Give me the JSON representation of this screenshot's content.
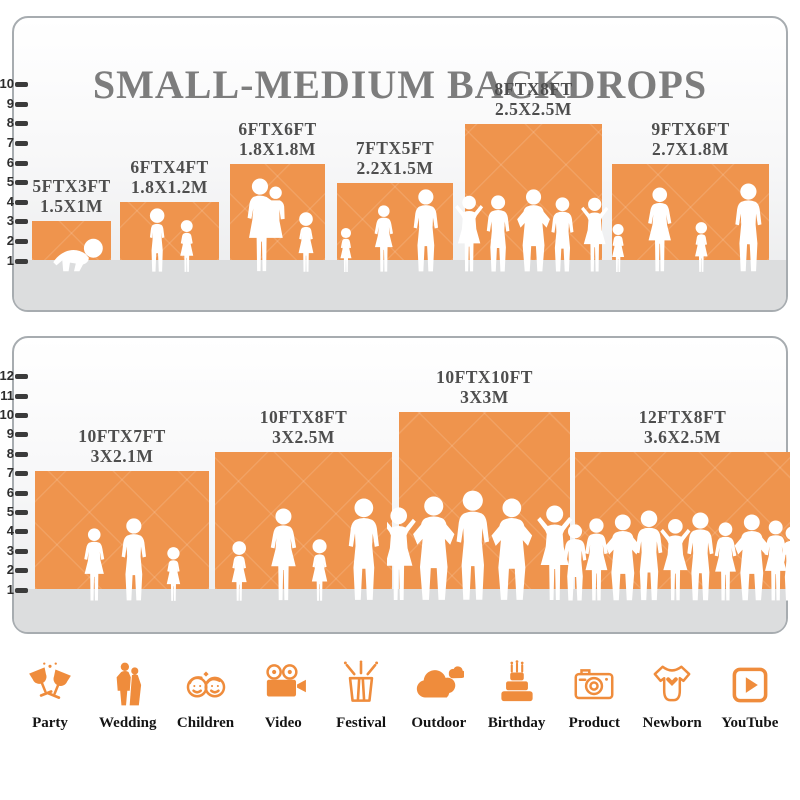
{
  "title": "SMALL-MEDIUM BACKDROPS",
  "colors": {
    "backdrop_orange": "#EF944D",
    "icon_accent": "#EF8C3C",
    "title_gray": "#7D7D7D",
    "label_gray": "#4E4E4E",
    "tick_dark": "#3B3B3B",
    "floor_gray": "#DCDDDE"
  },
  "panels": [
    {
      "name": "small-medium-top",
      "ruler": {
        "from": 1,
        "to": 10
      },
      "backdrops": [
        {
          "ft": "5FTX3FT",
          "m": "1.5X1M"
        },
        {
          "ft": "6FTX4FT",
          "m": "1.8X1.2M"
        },
        {
          "ft": "6FTX6FT",
          "m": "1.8X1.8M"
        },
        {
          "ft": "7FTX5FT",
          "m": "2.2X1.5M"
        },
        {
          "ft": "8FTX8FT",
          "m": "2.5X2.5M"
        },
        {
          "ft": "9FTX6FT",
          "m": "2.7X1.8M"
        }
      ]
    },
    {
      "name": "small-medium-bottom",
      "ruler": {
        "from": 1,
        "to": 12
      },
      "backdrops": [
        {
          "ft": "10FTX7FT",
          "m": "3X2.1M"
        },
        {
          "ft": "10FTX8FT",
          "m": "3X2.5M"
        },
        {
          "ft": "10FTX10FT",
          "m": "3X3M"
        },
        {
          "ft": "12FTX8FT",
          "m": "3.6X2.5M"
        }
      ]
    }
  ],
  "categories": [
    {
      "label": "Party",
      "icon": "party-icon"
    },
    {
      "label": "Wedding",
      "icon": "wedding-icon"
    },
    {
      "label": "Children",
      "icon": "children-icon"
    },
    {
      "label": "Video",
      "icon": "video-icon"
    },
    {
      "label": "Festival",
      "icon": "festival-icon"
    },
    {
      "label": "Outdoor",
      "icon": "outdoor-icon"
    },
    {
      "label": "Birthday",
      "icon": "birthday-icon"
    },
    {
      "label": "Product",
      "icon": "product-icon"
    },
    {
      "label": "Newborn",
      "icon": "newborn-icon"
    },
    {
      "label": "YouTube",
      "icon": "youtube-icon"
    }
  ]
}
